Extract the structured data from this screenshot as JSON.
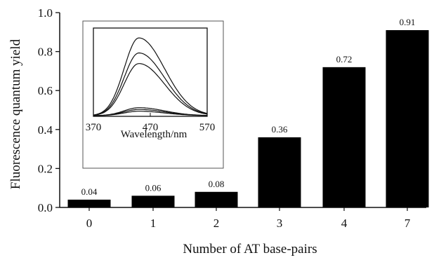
{
  "chart_data": {
    "type": "bar",
    "categories": [
      "0",
      "1",
      "2",
      "3",
      "4",
      "7"
    ],
    "values": [
      0.04,
      0.06,
      0.08,
      0.36,
      0.72,
      0.91
    ],
    "data_labels": [
      "0.04",
      "0.06",
      "0.08",
      "0.36",
      "0.72",
      "0.91"
    ],
    "xlabel": "Number of AT base-pairs",
    "ylabel": "Fluorescence quantum yield",
    "ylim": [
      0,
      1.0
    ],
    "yticks": [
      "0.0",
      "0.2",
      "0.4",
      "0.6",
      "0.8",
      "1.0"
    ],
    "bar_color": "#000000",
    "inset": {
      "type": "line",
      "xlabel": "Wavelength/nm",
      "xticks": [
        "370",
        "470",
        "570"
      ],
      "xlim": [
        370,
        570
      ],
      "peak_x": 450,
      "peak_heights": [
        0.88,
        0.71,
        0.59,
        0.09,
        0.07,
        0.05
      ]
    }
  }
}
